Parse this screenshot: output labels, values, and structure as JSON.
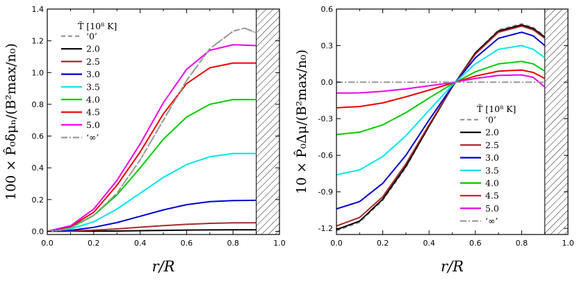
{
  "chart_data": [
    {
      "type": "line",
      "ylabel": "100 × P̂₀δμₙ/(B²max/n₀)",
      "xlabel": "r/R",
      "xlim": [
        0,
        1.0
      ],
      "ylim": [
        -0.02,
        1.4
      ],
      "xticks": [
        "0.0",
        "0.2",
        "0.4",
        "0.6",
        "0.8",
        "1.0"
      ],
      "yticks": [
        "0.0",
        "0.2",
        "0.4",
        "0.6",
        "0.8",
        "1.0",
        "1.2",
        "1.4"
      ],
      "legend_title": "T̃ [10⁸ K]",
      "legend_position": "upper-left",
      "hatched_region": [
        0.9,
        1.0
      ],
      "series": [
        {
          "name": "‘0’",
          "color": "#999999",
          "dash": "dashed",
          "x": [
            0,
            0.05,
            0.1,
            0.2,
            0.3,
            0.4,
            0.5,
            0.6,
            0.7,
            0.8,
            0.85,
            0.9
          ],
          "y": [
            0,
            0.005,
            0.02,
            0.1,
            0.24,
            0.45,
            0.7,
            0.95,
            1.15,
            1.26,
            1.28,
            1.25
          ]
        },
        {
          "name": "2.0",
          "color": "#000000",
          "dash": "solid",
          "x": [
            0,
            0.1,
            0.2,
            0.3,
            0.4,
            0.5,
            0.6,
            0.7,
            0.8,
            0.9
          ],
          "y": [
            0,
            0.0005,
            0.001,
            0.002,
            0.004,
            0.006,
            0.008,
            0.009,
            0.01,
            0.01
          ]
        },
        {
          "name": "2.5",
          "color": "#a52a2a",
          "dash": "solid",
          "x": [
            0,
            0.1,
            0.2,
            0.3,
            0.4,
            0.5,
            0.6,
            0.7,
            0.8,
            0.9
          ],
          "y": [
            0,
            0.002,
            0.007,
            0.015,
            0.026,
            0.036,
            0.044,
            0.05,
            0.053,
            0.054
          ]
        },
        {
          "name": "3.0",
          "color": "#0000cc",
          "dash": "solid",
          "x": [
            0,
            0.1,
            0.2,
            0.3,
            0.4,
            0.5,
            0.6,
            0.7,
            0.8,
            0.9
          ],
          "y": [
            0,
            0.006,
            0.025,
            0.055,
            0.095,
            0.135,
            0.168,
            0.187,
            0.194,
            0.195
          ]
        },
        {
          "name": "3.5",
          "color": "#00e5ee",
          "dash": "solid",
          "x": [
            0,
            0.1,
            0.2,
            0.3,
            0.4,
            0.5,
            0.6,
            0.7,
            0.8,
            0.9
          ],
          "y": [
            0,
            0.015,
            0.06,
            0.14,
            0.24,
            0.34,
            0.42,
            0.47,
            0.49,
            0.49
          ]
        },
        {
          "name": "4.0",
          "color": "#00cc00",
          "dash": "solid",
          "x": [
            0,
            0.1,
            0.2,
            0.3,
            0.4,
            0.5,
            0.6,
            0.7,
            0.8,
            0.9
          ],
          "y": [
            0,
            0.025,
            0.1,
            0.23,
            0.4,
            0.58,
            0.72,
            0.8,
            0.83,
            0.83
          ]
        },
        {
          "name": "4.5",
          "color": "#ee0000",
          "dash": "solid",
          "x": [
            0,
            0.1,
            0.2,
            0.3,
            0.4,
            0.5,
            0.6,
            0.7,
            0.8,
            0.9
          ],
          "y": [
            0,
            0.03,
            0.12,
            0.29,
            0.5,
            0.74,
            0.93,
            1.03,
            1.06,
            1.06
          ]
        },
        {
          "name": "5.0",
          "color": "#ee00ee",
          "dash": "solid",
          "x": [
            0,
            0.1,
            0.2,
            0.3,
            0.4,
            0.5,
            0.6,
            0.7,
            0.8,
            0.9
          ],
          "y": [
            0,
            0.035,
            0.14,
            0.32,
            0.55,
            0.81,
            1.02,
            1.14,
            1.175,
            1.17
          ]
        },
        {
          "name": "‘∞’",
          "color": "#999999",
          "dash": "dashdot",
          "x": [
            0,
            0.05,
            0.1,
            0.2,
            0.3,
            0.4,
            0.5,
            0.6,
            0.7,
            0.8,
            0.85,
            0.9
          ],
          "y": [
            0,
            0.005,
            0.02,
            0.1,
            0.24,
            0.45,
            0.7,
            0.95,
            1.15,
            1.26,
            1.28,
            1.25
          ]
        }
      ]
    },
    {
      "type": "line",
      "ylabel": "10 × P̂₀Δμ/(B²max/n₀)",
      "xlabel": "r/R",
      "xlim": [
        0,
        1.0
      ],
      "ylim": [
        -1.25,
        0.6
      ],
      "xticks": [
        "0.0",
        "0.2",
        "0.4",
        "0.6",
        "0.8",
        "1.0"
      ],
      "yticks": [
        "-1.2",
        "-0.9",
        "-0.6",
        "-0.3",
        "0.0",
        "0.3",
        "0.6"
      ],
      "legend_title": "T̃ [10⁸ K]",
      "legend_position": "lower-right",
      "hatched_region": [
        0.9,
        1.0
      ],
      "series": [
        {
          "name": "‘0’",
          "color": "#999999",
          "dash": "dashed",
          "x": [
            0,
            0.1,
            0.2,
            0.3,
            0.4,
            0.5,
            0.6,
            0.7,
            0.8,
            0.85,
            0.9
          ],
          "y": [
            -1.22,
            -1.15,
            -0.97,
            -0.7,
            -0.36,
            -0.04,
            0.24,
            0.43,
            0.48,
            0.45,
            0.38
          ]
        },
        {
          "name": "2.0",
          "color": "#000000",
          "dash": "solid",
          "x": [
            0,
            0.1,
            0.2,
            0.3,
            0.4,
            0.5,
            0.6,
            0.7,
            0.8,
            0.85,
            0.9
          ],
          "y": [
            -1.21,
            -1.14,
            -0.96,
            -0.69,
            -0.36,
            -0.04,
            0.24,
            0.42,
            0.47,
            0.44,
            0.37
          ]
        },
        {
          "name": "2.5",
          "color": "#a52a2a",
          "dash": "solid",
          "x": [
            0,
            0.1,
            0.2,
            0.3,
            0.4,
            0.5,
            0.6,
            0.7,
            0.8,
            0.85,
            0.9
          ],
          "y": [
            -1.18,
            -1.11,
            -0.94,
            -0.67,
            -0.35,
            -0.04,
            0.23,
            0.41,
            0.46,
            0.43,
            0.36
          ]
        },
        {
          "name": "3.0",
          "color": "#0000cc",
          "dash": "solid",
          "x": [
            0,
            0.1,
            0.2,
            0.3,
            0.4,
            0.5,
            0.6,
            0.7,
            0.8,
            0.85,
            0.9
          ],
          "y": [
            -1.04,
            -0.98,
            -0.83,
            -0.6,
            -0.31,
            -0.035,
            0.2,
            0.36,
            0.41,
            0.38,
            0.3
          ]
        },
        {
          "name": "3.5",
          "color": "#00e5ee",
          "dash": "solid",
          "x": [
            0,
            0.1,
            0.2,
            0.3,
            0.4,
            0.5,
            0.6,
            0.7,
            0.8,
            0.85,
            0.9
          ],
          "y": [
            -0.76,
            -0.72,
            -0.61,
            -0.44,
            -0.23,
            -0.025,
            0.15,
            0.27,
            0.3,
            0.27,
            0.2
          ]
        },
        {
          "name": "4.0",
          "color": "#00cc00",
          "dash": "solid",
          "x": [
            0,
            0.1,
            0.2,
            0.3,
            0.4,
            0.5,
            0.6,
            0.7,
            0.8,
            0.85,
            0.9
          ],
          "y": [
            -0.43,
            -0.41,
            -0.35,
            -0.25,
            -0.13,
            -0.015,
            0.085,
            0.15,
            0.17,
            0.15,
            0.09
          ]
        },
        {
          "name": "4.5",
          "color": "#ee0000",
          "dash": "solid",
          "x": [
            0,
            0.1,
            0.2,
            0.3,
            0.4,
            0.5,
            0.6,
            0.7,
            0.8,
            0.85,
            0.9
          ],
          "y": [
            -0.21,
            -0.2,
            -0.17,
            -0.12,
            -0.065,
            -0.008,
            0.05,
            0.09,
            0.1,
            0.08,
            0.03
          ]
        },
        {
          "name": "5.0",
          "color": "#ee00ee",
          "dash": "solid",
          "x": [
            0,
            0.1,
            0.2,
            0.3,
            0.4,
            0.5,
            0.6,
            0.7,
            0.8,
            0.85,
            0.9
          ],
          "y": [
            -0.09,
            -0.088,
            -0.075,
            -0.055,
            -0.03,
            -0.004,
            0.03,
            0.055,
            0.06,
            0.04,
            -0.04
          ]
        },
        {
          "name": "‘∞’",
          "color": "#999999",
          "dash": "dashdot",
          "x": [
            0,
            0.9
          ],
          "y": [
            0,
            0
          ]
        }
      ]
    }
  ]
}
